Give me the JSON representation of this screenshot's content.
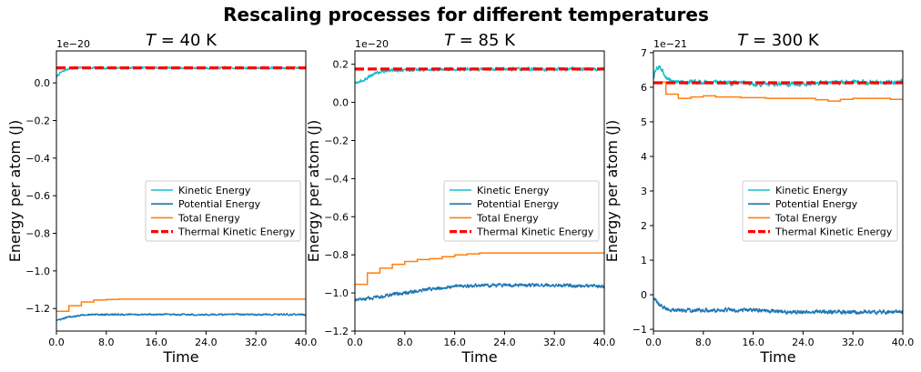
{
  "figure": {
    "title": "Rescaling processes for different temperatures"
  },
  "colors": {
    "kinetic": "#17becf",
    "potential": "#1f77b4",
    "total": "#ff7f0e",
    "thermal": "#ff0000"
  },
  "chart_data": [
    {
      "type": "line",
      "title_var": "T",
      "title_rest": " = 40 K",
      "xlabel": "Time",
      "ylabel": "Energy per atom (J)",
      "y_offset": "1e−20",
      "xlim": [
        0,
        40
      ],
      "ylim": [
        -1.32,
        0.17
      ],
      "xticks": [
        0,
        8,
        16,
        24,
        32,
        40
      ],
      "xtick_labels": [
        "0.0",
        "8.0",
        "16.0",
        "24.0",
        "32.0",
        "40.0"
      ],
      "yticks": [
        -1.2,
        -1.0,
        -0.8,
        -0.6,
        -0.4,
        -0.2,
        0.0
      ],
      "ytick_labels": [
        "−1.2",
        "−1.0",
        "−0.8",
        "−0.6",
        "−0.4",
        "−0.2",
        "0.0"
      ],
      "legend_position": "center-right",
      "series": [
        {
          "name": "Kinetic Energy",
          "style": "kinetic",
          "x": [
            0,
            0.5,
            1,
            1.5,
            2,
            3,
            4,
            6,
            10,
            16,
            24,
            32,
            40
          ],
          "y": [
            0.03,
            0.05,
            0.06,
            0.07,
            0.075,
            0.08,
            0.08,
            0.08,
            0.08,
            0.08,
            0.08,
            0.08,
            0.08
          ],
          "noise": 0.008
        },
        {
          "name": "Potential Energy",
          "style": "potential",
          "x": [
            0,
            0.5,
            1,
            1.5,
            2,
            3,
            4,
            6,
            10,
            16,
            24,
            32,
            40
          ],
          "y": [
            -1.26,
            -1.26,
            -1.255,
            -1.25,
            -1.245,
            -1.24,
            -1.235,
            -1.232,
            -1.232,
            -1.232,
            -1.232,
            -1.232,
            -1.232
          ],
          "noise": 0.006
        },
        {
          "name": "Total Energy",
          "style": "total",
          "step": true,
          "x": [
            0,
            2,
            4,
            6,
            8,
            10,
            40
          ],
          "y": [
            -1.215,
            -1.185,
            -1.165,
            -1.155,
            -1.152,
            -1.15,
            -1.15
          ]
        },
        {
          "name": "Thermal Kinetic Energy",
          "style": "thermal",
          "x": [
            0,
            40
          ],
          "y": [
            0.08,
            0.08
          ]
        }
      ]
    },
    {
      "type": "line",
      "title_var": "T",
      "title_rest": " = 85 K",
      "xlabel": "Time",
      "ylabel": "Energy per atom (J)",
      "y_offset": "1e−20",
      "xlim": [
        0,
        40
      ],
      "ylim": [
        -1.2,
        0.27
      ],
      "xticks": [
        0,
        8,
        16,
        24,
        32,
        40
      ],
      "xtick_labels": [
        "0.0",
        "8.0",
        "16.0",
        "24.0",
        "32.0",
        "40.0"
      ],
      "yticks": [
        -1.2,
        -1.0,
        -0.8,
        -0.6,
        -0.4,
        -0.2,
        0.0,
        0.2
      ],
      "ytick_labels": [
        "−1.2",
        "−1.0",
        "−0.8",
        "−0.6",
        "−0.4",
        "−0.2",
        "0.0",
        "0.2"
      ],
      "legend_position": "center-right",
      "series": [
        {
          "name": "Kinetic Energy",
          "style": "kinetic",
          "x": [
            0,
            1,
            2,
            3,
            4,
            6,
            10,
            16,
            24,
            32,
            40
          ],
          "y": [
            0.1,
            0.11,
            0.13,
            0.15,
            0.16,
            0.17,
            0.17,
            0.175,
            0.175,
            0.175,
            0.175
          ],
          "noise": 0.012
        },
        {
          "name": "Potential Energy",
          "style": "potential",
          "x": [
            0,
            2,
            4,
            8,
            12,
            16,
            20,
            24,
            32,
            40
          ],
          "y": [
            -1.04,
            -1.03,
            -1.02,
            -1.0,
            -0.98,
            -0.965,
            -0.96,
            -0.96,
            -0.96,
            -0.965
          ],
          "noise": 0.012
        },
        {
          "name": "Total Energy",
          "style": "total",
          "step": true,
          "x": [
            0,
            2,
            4,
            6,
            8,
            10,
            12,
            14,
            16,
            18,
            20,
            22,
            24,
            28,
            32,
            36,
            40
          ],
          "y": [
            -0.955,
            -0.895,
            -0.87,
            -0.85,
            -0.835,
            -0.825,
            -0.82,
            -0.81,
            -0.8,
            -0.795,
            -0.79,
            -0.79,
            -0.79,
            -0.79,
            -0.79,
            -0.79,
            -0.79
          ]
        },
        {
          "name": "Thermal Kinetic Energy",
          "style": "thermal",
          "x": [
            0,
            40
          ],
          "y": [
            0.175,
            0.175
          ]
        }
      ]
    },
    {
      "type": "line",
      "title_var": "T",
      "title_rest": " = 300 K",
      "xlabel": "Time",
      "ylabel": "Energy per atom (J)",
      "y_offset": "1e−21",
      "xlim": [
        0,
        40
      ],
      "ylim": [
        -1.05,
        7.05
      ],
      "xticks": [
        0,
        8,
        16,
        24,
        32,
        40
      ],
      "xtick_labels": [
        "0.0",
        "8.0",
        "16.0",
        "24.0",
        "32.0",
        "40.0"
      ],
      "yticks": [
        -1,
        0,
        1,
        2,
        3,
        4,
        5,
        6,
        7
      ],
      "ytick_labels": [
        "−1",
        "0",
        "1",
        "2",
        "3",
        "4",
        "5",
        "6",
        "7"
      ],
      "legend_position": "center-right",
      "series": [
        {
          "name": "Kinetic Energy",
          "style": "kinetic",
          "x": [
            0,
            0.5,
            1,
            1.5,
            2,
            3,
            4,
            8,
            16,
            24,
            32,
            40
          ],
          "y": [
            6.3,
            6.55,
            6.6,
            6.45,
            6.25,
            6.2,
            6.15,
            6.15,
            6.1,
            6.1,
            6.15,
            6.15
          ],
          "noise": 0.09
        },
        {
          "name": "Potential Energy",
          "style": "potential",
          "x": [
            0,
            0.5,
            1,
            2,
            3,
            4,
            8,
            16,
            24,
            32,
            40
          ],
          "y": [
            -0.1,
            -0.2,
            -0.3,
            -0.4,
            -0.45,
            -0.45,
            -0.45,
            -0.45,
            -0.5,
            -0.5,
            -0.5
          ],
          "noise": 0.08
        },
        {
          "name": "Total Energy",
          "style": "total",
          "step": true,
          "x": [
            0,
            2,
            4,
            6,
            8,
            10,
            14,
            18,
            22,
            26,
            28,
            30,
            32,
            36,
            38,
            40
          ],
          "y": [
            6.15,
            5.8,
            5.68,
            5.72,
            5.75,
            5.72,
            5.7,
            5.68,
            5.68,
            5.64,
            5.6,
            5.65,
            5.68,
            5.68,
            5.65,
            5.65
          ]
        },
        {
          "name": "Thermal Kinetic Energy",
          "style": "thermal",
          "x": [
            0,
            40
          ],
          "y": [
            6.13,
            6.13
          ]
        }
      ]
    }
  ]
}
